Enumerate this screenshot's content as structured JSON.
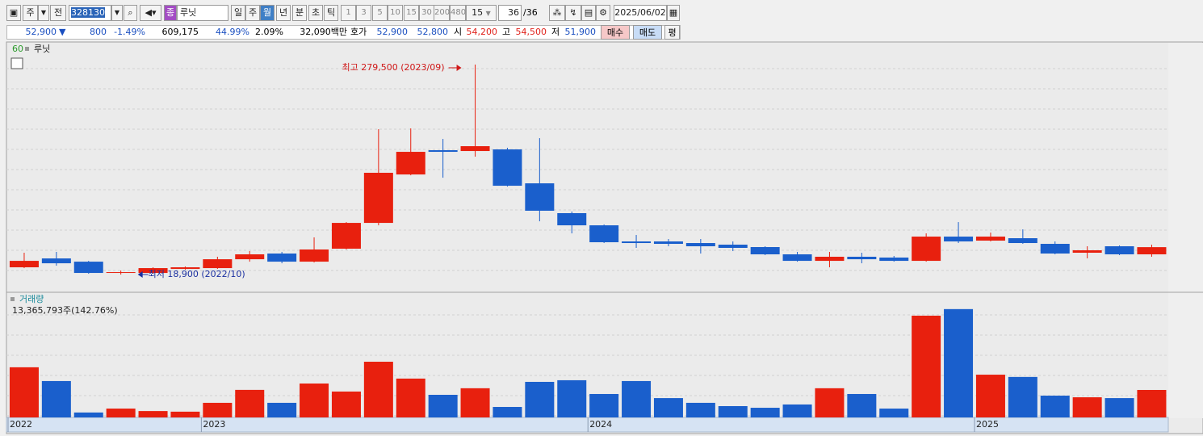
{
  "toolbar": {
    "period": "주",
    "mode": "전",
    "code": "328130",
    "name": "루닛",
    "units": [
      "일",
      "주",
      "월",
      "년",
      "분",
      "초",
      "틱"
    ],
    "steps": [
      "1",
      "3",
      "5",
      "10",
      "15",
      "30",
      "200",
      "480"
    ],
    "step_select": "15",
    "count": "36",
    "count_total": "/36",
    "date": "2025/06/02"
  },
  "quote_bar": {
    "price": "52,900",
    "arrow": "▼",
    "change": "800",
    "change_rate": "-1.49%",
    "volume": "609,175",
    "volume_rate": "44.99%",
    "turnover_rate": "2.09%",
    "amount": "32,090백만",
    "bid_label": "호가",
    "ask": "52,900",
    "bid": "52,800",
    "open_label": "시",
    "open": "54,200",
    "high_label": "고",
    "high": "54,500",
    "low_label": "저",
    "low": "51,900",
    "buy": "매수",
    "sell": "매도",
    "avg": "평"
  },
  "chart_data": {
    "type": "candlestick",
    "indicator": "60",
    "name": "루닛",
    "categories": [
      "2022",
      null,
      null,
      null,
      null,
      null,
      "2023",
      null,
      null,
      null,
      null,
      null,
      null,
      null,
      null,
      null,
      null,
      null,
      "2024",
      null,
      null,
      null,
      null,
      null,
      null,
      null,
      null,
      null,
      null,
      null,
      "2025",
      null,
      null,
      null,
      null,
      null
    ],
    "open": [
      27900,
      38900,
      34900,
      20900,
      20900,
      25900,
      26900,
      37900,
      45000,
      34900,
      51000,
      83000,
      143100,
      173200,
      172200,
      174200,
      132100,
      95100,
      80000,
      60000,
      60000,
      58000,
      56000,
      53000,
      44000,
      35900,
      41000,
      40000,
      35900,
      66000,
      61000,
      64000,
      57000,
      46000,
      54000,
      44000
    ],
    "high": [
      46000,
      47000,
      35900,
      23900,
      27900,
      28900,
      41000,
      48000,
      47000,
      65000,
      84000,
      199300,
      200300,
      187200,
      279500,
      176200,
      188200,
      97100,
      81000,
      68000,
      63000,
      63000,
      60000,
      54000,
      47000,
      47000,
      46000,
      42000,
      70000,
      84000,
      71000,
      75000,
      60000,
      54000,
      55000,
      56000
    ],
    "low": [
      26900,
      29900,
      19900,
      18900,
      19900,
      24900,
      25900,
      34900,
      32900,
      33900,
      50000,
      80000,
      142100,
      139100,
      165200,
      128100,
      85000,
      70000,
      58000,
      52000,
      54000,
      45000,
      48000,
      43000,
      34900,
      27900,
      32900,
      34900,
      34900,
      58000,
      60000,
      57000,
      44000,
      39000,
      43000,
      41000
    ],
    "close": [
      35900,
      32900,
      20900,
      21900,
      26900,
      27900,
      37900,
      44000,
      34900,
      50000,
      83000,
      145200,
      171200,
      171200,
      178200,
      129100,
      98100,
      80000,
      59000,
      58000,
      57000,
      54000,
      52000,
      44000,
      35900,
      41000,
      37900,
      35900,
      66000,
      60000,
      66000,
      58000,
      45000,
      49000,
      44000,
      52900
    ],
    "up_color": "#e8200e",
    "down_color": "#1a5fcc",
    "ylim": [
      -3100,
      304500
    ],
    "annotations": {
      "high": "최고 279,500 (2023/09)",
      "low": "최저 18,900 (2022/10)"
    },
    "volume": {
      "title": "거래량",
      "label": "13,365,793주(142.76%)",
      "values": [
        24400000,
        17700000,
        2400000,
        4300000,
        3100000,
        2800000,
        7100000,
        13400000,
        7100000,
        16500000,
        12600000,
        27100000,
        18900000,
        11000000,
        14200000,
        5100000,
        17300000,
        18100000,
        11400000,
        17700000,
        9400000,
        7100000,
        5500000,
        4700000,
        6300000,
        14200000,
        11400000,
        4300000,
        49500000,
        52700000,
        20800000,
        19700000,
        10600000,
        9800000,
        9400000,
        13365793
      ],
      "ylim": [
        0,
        60100000
      ]
    }
  }
}
